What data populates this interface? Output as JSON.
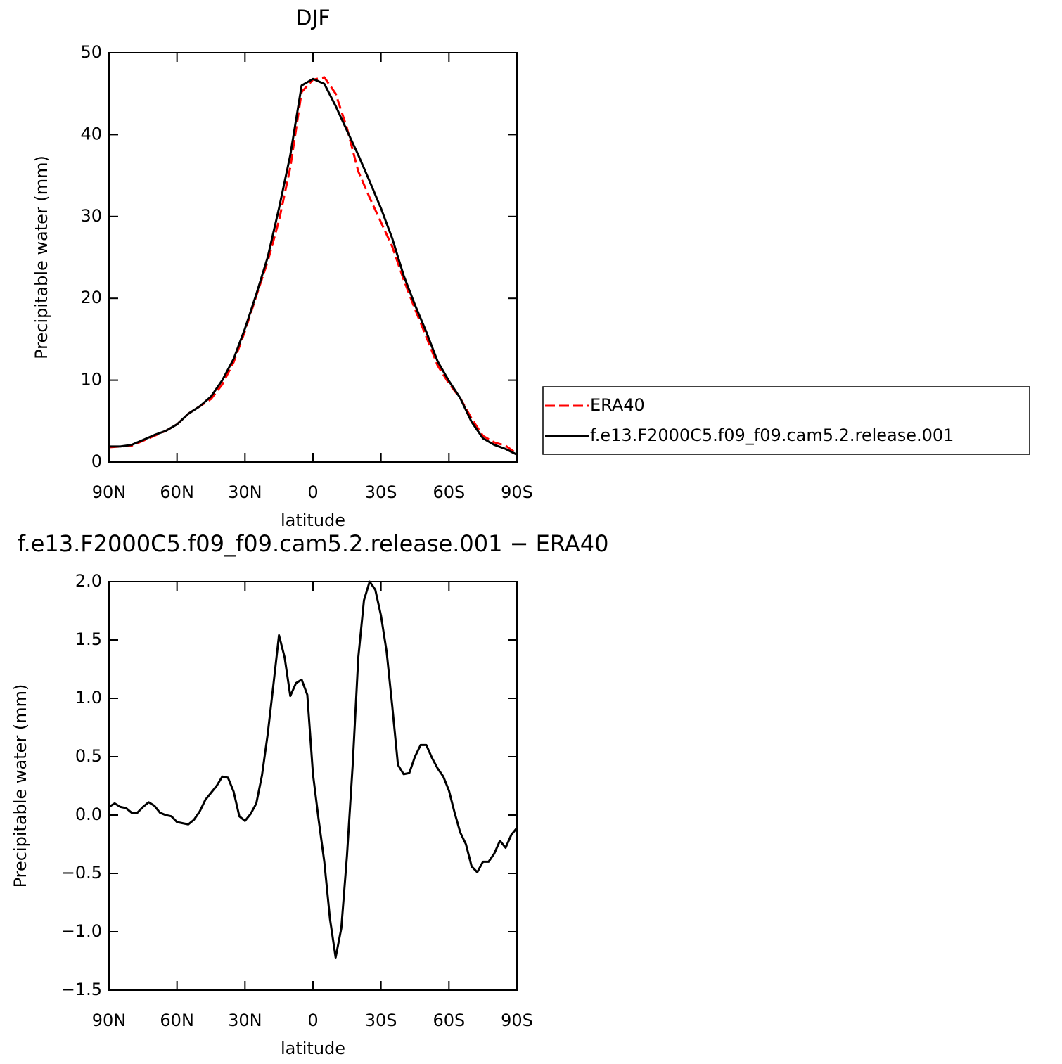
{
  "chart_data": [
    {
      "type": "line",
      "title": "DJF",
      "xlabel": "latitude",
      "ylabel": "Precipitable water (mm)",
      "x": [
        90,
        85,
        80,
        75,
        70,
        65,
        60,
        55,
        50,
        45,
        40,
        35,
        30,
        25,
        20,
        15,
        10,
        5,
        0,
        -5,
        -10,
        -15,
        -20,
        -25,
        -30,
        -35,
        -40,
        -45,
        -50,
        -55,
        -60,
        -65,
        -70,
        -75,
        -80,
        -85,
        -90
      ],
      "series": [
        {
          "name": "ERA40",
          "color": "#ff0000",
          "dash": true,
          "values": [
            1.8,
            1.9,
            2.0,
            2.6,
            3.2,
            3.8,
            4.6,
            5.9,
            6.8,
            7.7,
            9.5,
            12.2,
            16.0,
            20.3,
            24.5,
            29.5,
            36.0,
            45.2,
            46.7,
            47.0,
            45.0,
            40.8,
            35.5,
            32.3,
            29.3,
            26.3,
            22.3,
            18.7,
            15.3,
            11.8,
            9.6,
            7.8,
            5.3,
            3.2,
            2.4,
            2.0,
            1.0
          ]
        },
        {
          "name": "f.e13.F2000C5.f09_f09.cam5.2.release.001",
          "color": "#000000",
          "dash": false,
          "values": [
            1.9,
            1.9,
            2.1,
            2.7,
            3.3,
            3.8,
            4.6,
            5.9,
            6.8,
            8.0,
            10.0,
            12.6,
            16.3,
            20.5,
            25.0,
            31.0,
            37.5,
            46.0,
            46.8,
            46.2,
            43.5,
            40.5,
            37.5,
            34.3,
            31.0,
            27.3,
            22.8,
            19.2,
            15.9,
            12.3,
            9.9,
            7.8,
            4.9,
            2.9,
            2.1,
            1.6,
            0.9
          ]
        }
      ],
      "xlim": [
        90,
        -90
      ],
      "xticks": [
        {
          "value": 90,
          "label": "90N"
        },
        {
          "value": 60,
          "label": "60N"
        },
        {
          "value": 30,
          "label": "30N"
        },
        0,
        {
          "value": -30,
          "label": "30S"
        },
        {
          "value": -60,
          "label": "60S"
        },
        {
          "value": -90,
          "label": "90S"
        }
      ],
      "ylim": [
        0,
        50
      ],
      "yticks": [
        0,
        10,
        20,
        30,
        40,
        50
      ],
      "legend": "right"
    },
    {
      "type": "line",
      "title": "f.e13.F2000C5.f09_f09.cam5.2.release.001 − ERA40",
      "xlabel": "latitude",
      "ylabel": "Precipitable water (mm)",
      "x": [
        90,
        87.5,
        85,
        82.5,
        80,
        77.5,
        75,
        72.5,
        70,
        67.5,
        65,
        62.5,
        60,
        57.5,
        55,
        52.5,
        50,
        47.5,
        45,
        42.5,
        40,
        37.5,
        35,
        32.5,
        30,
        27.5,
        25,
        22.5,
        20,
        17.5,
        15,
        12.5,
        10,
        7.5,
        5,
        2.5,
        0,
        -2.5,
        -5,
        -7.5,
        -10,
        -12.5,
        -15,
        -17.5,
        -20,
        -22.5,
        -25,
        -27.5,
        -30,
        -32.5,
        -35,
        -37.5,
        -40,
        -42.5,
        -45,
        -47.5,
        -50,
        -52.5,
        -55,
        -57.5,
        -60,
        -62.5,
        -65,
        -67.5,
        -70,
        -72.5,
        -75,
        -77.5,
        -80,
        -82.5,
        -85,
        -87.5,
        -90
      ],
      "series": [
        {
          "name": null,
          "color": "#000000",
          "dash": false,
          "values": [
            0.07,
            0.1,
            0.07,
            0.06,
            0.02,
            0.02,
            0.07,
            0.11,
            0.08,
            0.02,
            0.0,
            -0.01,
            -0.06,
            -0.07,
            -0.08,
            -0.04,
            0.03,
            0.13,
            0.19,
            0.25,
            0.33,
            0.32,
            0.2,
            -0.01,
            -0.05,
            0.01,
            0.1,
            0.34,
            0.69,
            1.11,
            1.54,
            1.35,
            1.02,
            1.13,
            1.16,
            1.03,
            0.35,
            -0.04,
            -0.4,
            -0.89,
            -1.22,
            -0.97,
            -0.35,
            0.42,
            1.35,
            1.84,
            2.0,
            1.93,
            1.71,
            1.4,
            0.93,
            0.43,
            0.35,
            0.36,
            0.5,
            0.6,
            0.6,
            0.49,
            0.4,
            0.33,
            0.21,
            0.02,
            -0.15,
            -0.25,
            -0.44,
            -0.49,
            -0.4,
            -0.4,
            -0.33,
            -0.22,
            -0.28,
            -0.17,
            -0.11
          ]
        }
      ],
      "xlim": [
        90,
        -90
      ],
      "xticks": [
        {
          "value": 90,
          "label": "90N"
        },
        {
          "value": 60,
          "label": "60N"
        },
        {
          "value": 30,
          "label": "30N"
        },
        0,
        {
          "value": -30,
          "label": "30S"
        },
        {
          "value": -60,
          "label": "60S"
        },
        {
          "value": -90,
          "label": "90S"
        }
      ],
      "ylim": [
        -1.5,
        2.0
      ],
      "yticks": [
        {
          "value": -1.5,
          "label": "−1.5"
        },
        {
          "value": -1,
          "label": "−1.0"
        },
        {
          "value": -0.5,
          "label": "−0.5"
        },
        {
          "value": 0,
          "label": "0.0"
        },
        0.5,
        {
          "value": 1,
          "label": "1.0"
        },
        1.5,
        {
          "value": 2,
          "label": "2.0"
        }
      ]
    }
  ]
}
